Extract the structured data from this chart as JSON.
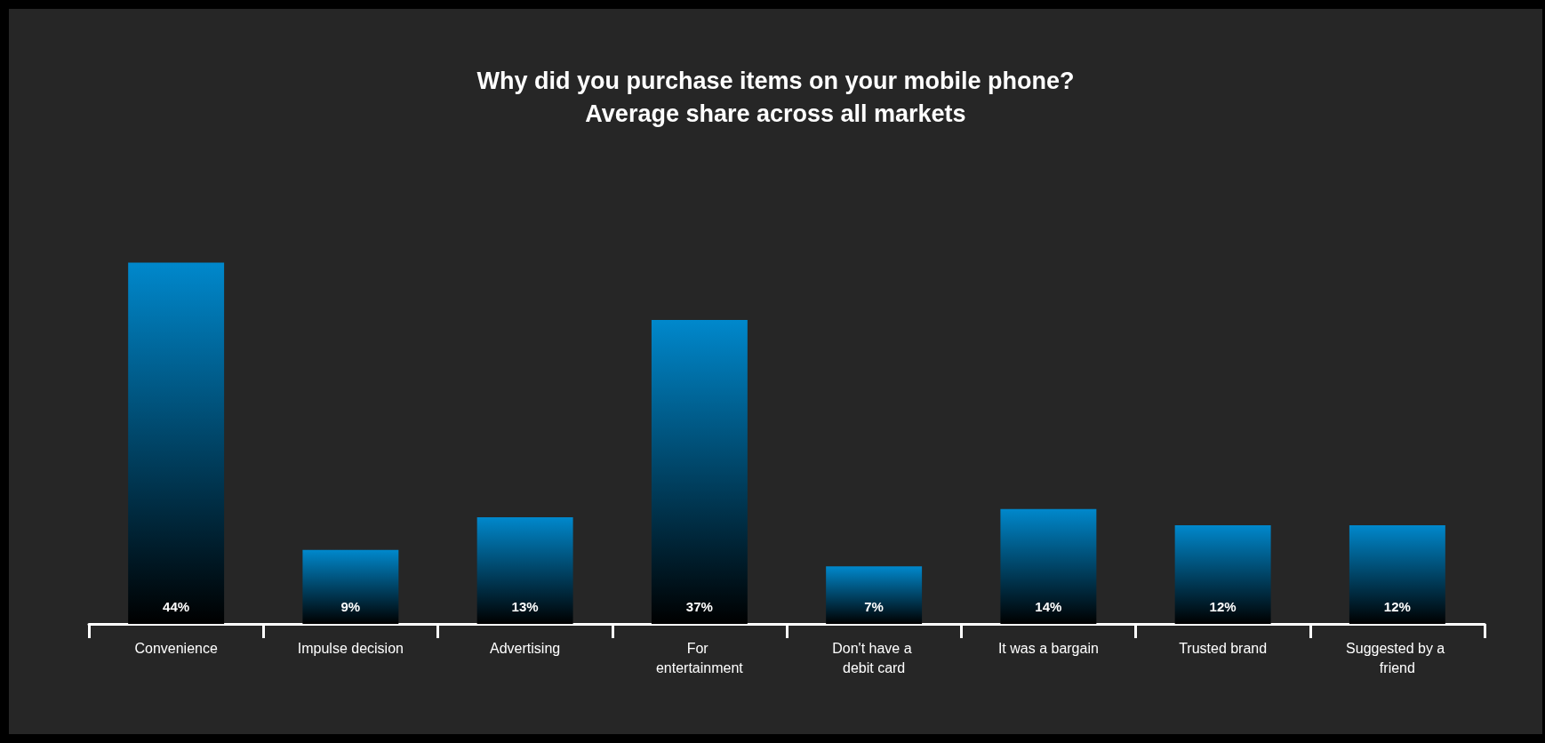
{
  "chart_data": {
    "type": "bar",
    "title": "Why did you purchase items on your mobile phone?",
    "subtitle": "Average share across all markets",
    "categories": [
      "Convenience",
      "Impulse decision",
      "Advertising",
      "For entertainment",
      "Don't have a debit card",
      "It was a bargain",
      "Trusted brand",
      "Suggested by a friend"
    ],
    "values": [
      44,
      9,
      13,
      37,
      7,
      14,
      12,
      12
    ],
    "value_labels": [
      "44%",
      "9%",
      "13%",
      "37%",
      "7%",
      "14%",
      "12%",
      "12%"
    ],
    "color": "#0088cc"
  }
}
